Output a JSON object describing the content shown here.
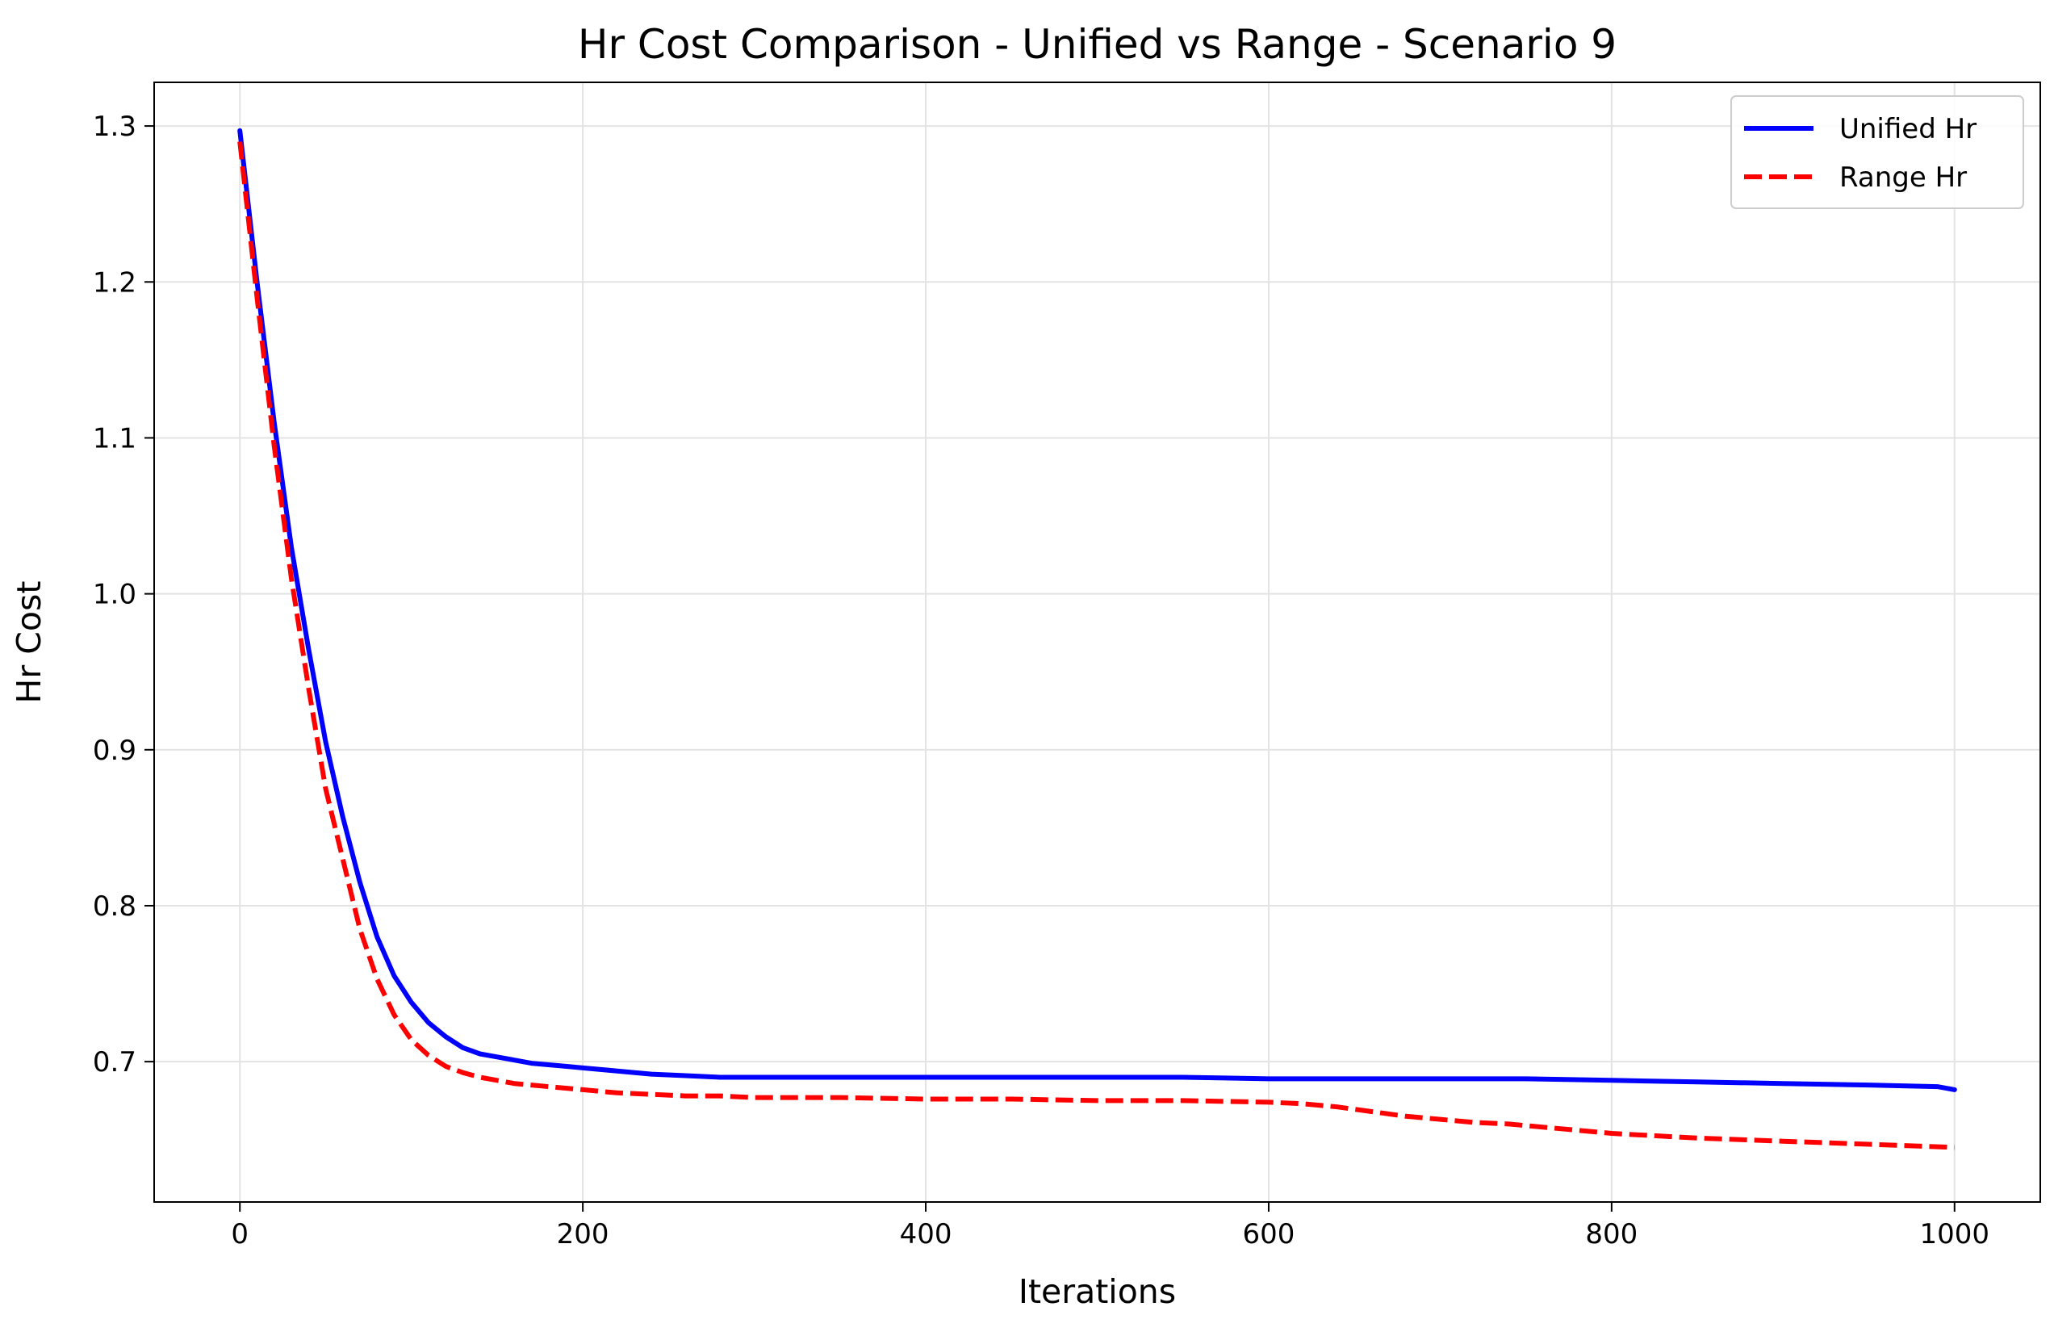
{
  "chart_data": {
    "type": "line",
    "title": "Hr Cost Comparison - Unified vs Range - Scenario 9",
    "xlabel": "Iterations",
    "ylabel": "Hr Cost",
    "xlim": [
      -50,
      1050
    ],
    "ylim": [
      0.61,
      1.328
    ],
    "xticks": [
      0,
      200,
      400,
      600,
      800,
      1000
    ],
    "xtick_labels": [
      "0",
      "200",
      "400",
      "600",
      "800",
      "1000"
    ],
    "yticks": [
      0.7,
      0.8,
      0.9,
      1.0,
      1.1,
      1.2,
      1.3
    ],
    "ytick_labels": [
      "0.7",
      "0.8",
      "0.9",
      "1.0",
      "1.1",
      "1.2",
      "1.3"
    ],
    "grid": true,
    "legend_position": "top-right",
    "series": [
      {
        "name": "Unified Hr",
        "color": "#0000ff",
        "line_style": "solid",
        "x": [
          0,
          10,
          20,
          30,
          40,
          50,
          60,
          70,
          80,
          90,
          100,
          110,
          120,
          130,
          140,
          150,
          160,
          170,
          180,
          190,
          200,
          220,
          240,
          260,
          280,
          300,
          350,
          400,
          450,
          500,
          550,
          600,
          650,
          700,
          750,
          800,
          850,
          900,
          950,
          990,
          1000
        ],
        "y": [
          1.297,
          1.2,
          1.11,
          1.03,
          0.965,
          0.905,
          0.857,
          0.815,
          0.78,
          0.755,
          0.738,
          0.725,
          0.716,
          0.709,
          0.705,
          0.703,
          0.701,
          0.699,
          0.698,
          0.697,
          0.696,
          0.694,
          0.692,
          0.691,
          0.69,
          0.69,
          0.69,
          0.69,
          0.69,
          0.69,
          0.69,
          0.689,
          0.689,
          0.689,
          0.689,
          0.688,
          0.687,
          0.686,
          0.685,
          0.684,
          0.682
        ]
      },
      {
        "name": "Range Hr",
        "color": "#ff0000",
        "line_style": "dashed",
        "x": [
          0,
          10,
          20,
          30,
          40,
          50,
          60,
          70,
          80,
          90,
          100,
          110,
          120,
          130,
          140,
          150,
          160,
          170,
          180,
          190,
          200,
          220,
          240,
          260,
          280,
          300,
          350,
          400,
          450,
          500,
          550,
          600,
          620,
          640,
          660,
          680,
          700,
          720,
          740,
          760,
          780,
          800,
          850,
          900,
          950,
          1000
        ],
        "y": [
          1.29,
          1.19,
          1.095,
          1.01,
          0.94,
          0.875,
          0.83,
          0.785,
          0.753,
          0.73,
          0.714,
          0.704,
          0.697,
          0.693,
          0.69,
          0.688,
          0.686,
          0.685,
          0.684,
          0.683,
          0.682,
          0.68,
          0.679,
          0.678,
          0.678,
          0.677,
          0.677,
          0.676,
          0.676,
          0.675,
          0.675,
          0.674,
          0.673,
          0.671,
          0.668,
          0.665,
          0.663,
          0.661,
          0.66,
          0.658,
          0.656,
          0.654,
          0.651,
          0.649,
          0.647,
          0.645
        ]
      }
    ]
  }
}
